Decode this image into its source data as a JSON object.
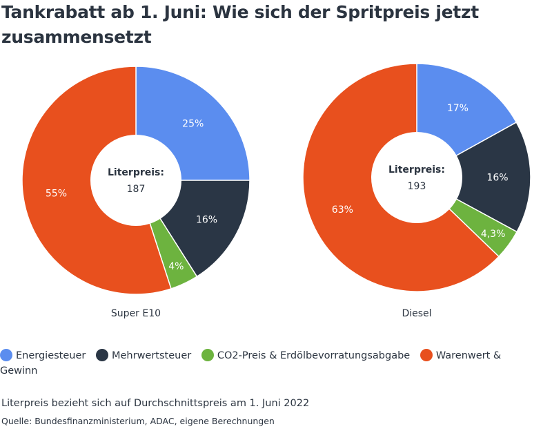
{
  "title": "Tankrabatt ab 1. Juni: Wie sich der Spritpreis jetzt zusammensetzt",
  "chart_data": [
    {
      "type": "pie",
      "name": "Super E10",
      "center_title": "Literpreis:",
      "center_value": "187",
      "slices": [
        {
          "category": "Energiesteuer",
          "value": 25,
          "label": "25%",
          "color": "#5b8def"
        },
        {
          "category": "Mehrwertsteuer",
          "value": 16,
          "label": "16%",
          "color": "#2a3645"
        },
        {
          "category": "CO2-Preis & Erdölbevorratungsabgabe",
          "value": 4,
          "label": "4%",
          "color": "#6db33f"
        },
        {
          "category": "Warenwert & Gewinn",
          "value": 55,
          "label": "55%",
          "color": "#e8501e"
        }
      ]
    },
    {
      "type": "pie",
      "name": "Diesel",
      "center_title": "Literpreis:",
      "center_value": "193",
      "slices": [
        {
          "category": "Energiesteuer",
          "value": 17,
          "label": "17%",
          "color": "#5b8def"
        },
        {
          "category": "Mehrwertsteuer",
          "value": 16,
          "label": "16%",
          "color": "#2a3645"
        },
        {
          "category": "CO2-Preis & Erdölbevorratungsabgabe",
          "value": 4.3,
          "label": "4,3%",
          "color": "#6db33f"
        },
        {
          "category": "Warenwert & Gewinn",
          "value": 63,
          "label": "63%",
          "color": "#e8501e"
        }
      ]
    }
  ],
  "legend": [
    {
      "label": "Energiesteuer",
      "color": "#5b8def"
    },
    {
      "label": "Mehrwertsteuer",
      "color": "#2a3645"
    },
    {
      "label": "CO2-Preis & Erdölbevorratungsabgabe",
      "color": "#6db33f"
    },
    {
      "label": "Warenwert & Gewinn",
      "color": "#e8501e"
    }
  ],
  "note": "Literpreis bezieht sich auf Durchschnittspreis am 1. Juni 2022",
  "source": "Quelle: Bundesfinanzministerium, ADAC, eigene Berechnungen"
}
